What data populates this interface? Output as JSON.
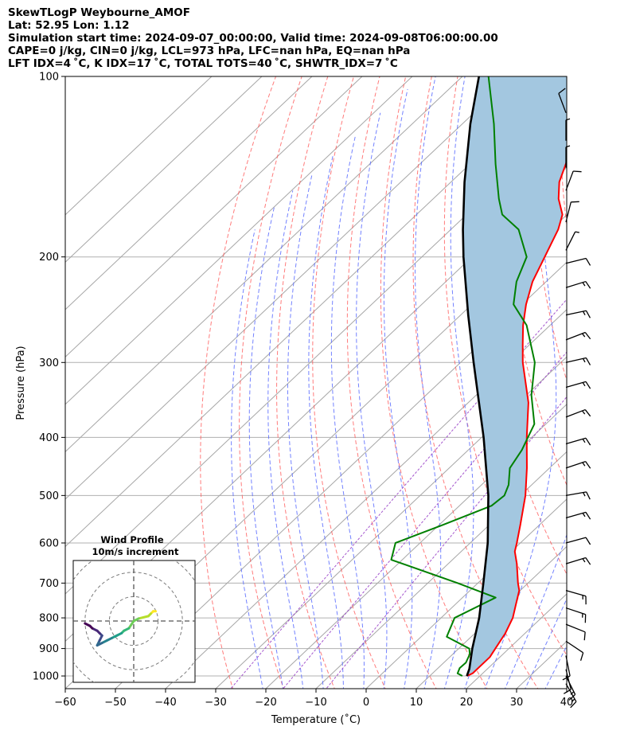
{
  "header": {
    "line1": "SkewTLogP Weybourne_AMOF",
    "line2": "Lat: 52.95   Lon: 1.12",
    "line3": "Simulation start time: 2024-09-07_00:00:00, Valid time: 2024-09-08T06:00:00.00",
    "line4": "CAPE=0 j/kg, CIN=0 j/kg, LCL=973 hPa, LFC=nan hPa, EQ=nan hPa",
    "line5": "LFT IDX=4 ˚C, K IDX=17 ˚C, TOTAL TOTS=40 ˚C, SHWTR_IDX=7 ˚C"
  },
  "chart_data": {
    "type": "skewt",
    "xlabel": "Temperature (˚C)",
    "ylabel": "Pressure (hPa)",
    "xlim": [
      -60,
      40
    ],
    "ylim": [
      1050,
      100
    ],
    "xticks": [
      -60,
      -50,
      -40,
      -30,
      -20,
      -10,
      0,
      10,
      20,
      30,
      40
    ],
    "xtick_labels": [
      "−60",
      "−50",
      "−40",
      "−30",
      "−20",
      "−10",
      "0",
      "10",
      "20",
      "30",
      "40"
    ],
    "yticks": [
      1000,
      900,
      800,
      700,
      600,
      500,
      400,
      300,
      200,
      100
    ],
    "ytick_labels": [
      "1000",
      "900",
      "800",
      "700",
      "600",
      "500",
      "400",
      "300",
      "200",
      "100"
    ],
    "series": [
      {
        "name": "temperature",
        "color": "#ff0000",
        "p": [
          1000,
          990,
          960,
          930,
          900,
          850,
          800,
          760,
          720,
          700,
          650,
          620,
          600,
          560,
          500,
          450,
          400,
          350,
          300,
          280,
          260,
          240,
          220,
          200,
          180,
          170,
          160,
          150,
          140,
          130,
          120,
          110,
          100
        ],
        "t": [
          17.4,
          18,
          18,
          18,
          17.3,
          16.1,
          14.3,
          12.1,
          9.8,
          8,
          3.7,
          0.7,
          -0.7,
          -3.8,
          -9,
          -14.5,
          -21,
          -28,
          -37.6,
          -41.4,
          -45.4,
          -49.2,
          -52.7,
          -55.5,
          -58.6,
          -60.9,
          -65,
          -68.4,
          -70.9,
          -73.6,
          -77.6,
          -81.9,
          -86.3
        ]
      },
      {
        "name": "dewpoint",
        "color": "#008000",
        "p": [
          1000,
          990,
          970,
          950,
          920,
          900,
          860,
          800,
          740,
          700,
          640,
          600,
          560,
          520,
          500,
          480,
          450,
          420,
          380,
          340,
          300,
          260,
          240,
          220,
          200,
          180,
          170,
          160,
          140,
          120,
          100
        ],
        "t": [
          16.5,
          15,
          14.3,
          14.4,
          13.4,
          12.1,
          5.1,
          2.7,
          6.6,
          -4,
          -22.2,
          -24.9,
          -19.3,
          -13.6,
          -13.2,
          -14.6,
          -17.9,
          -19.3,
          -22.3,
          -29,
          -35.2,
          -44.7,
          -51.7,
          -55.9,
          -59.1,
          -66.5,
          -72.9,
          -76.9,
          -84.9,
          -93.7,
          -104.8
        ]
      },
      {
        "name": "parcel",
        "color": "#000000",
        "p": [
          1000,
          973,
          900,
          800,
          700,
          600,
          500,
          400,
          300,
          250,
          200,
          180,
          150,
          120,
          100
        ],
        "t": [
          17.4,
          16.4,
          12.7,
          7.6,
          1.1,
          -6.5,
          -16.4,
          -29.6,
          -47.4,
          -58.5,
          -71.7,
          -77.6,
          -87.3,
          -98.4,
          -106.7
        ]
      }
    ],
    "wind_barbs": [
      {
        "p": 1030,
        "u": 8,
        "v": -14
      },
      {
        "p": 1000,
        "u": 6,
        "v": -12
      },
      {
        "p": 975,
        "u": 3,
        "v": -12
      },
      {
        "p": 925,
        "u": 2,
        "v": -10
      },
      {
        "p": 875,
        "u": 9,
        "v": -6
      },
      {
        "p": 820,
        "u": 10,
        "v": -4
      },
      {
        "p": 770,
        "u": 12,
        "v": -4
      },
      {
        "p": 720,
        "u": 14,
        "v": -4
      },
      {
        "p": 650,
        "u": 13,
        "v": 4
      },
      {
        "p": 600,
        "u": 11,
        "v": 3
      },
      {
        "p": 545,
        "u": 14,
        "v": 4
      },
      {
        "p": 500,
        "u": 17,
        "v": 3
      },
      {
        "p": 450,
        "u": 15,
        "v": 5
      },
      {
        "p": 410,
        "u": 14,
        "v": 4
      },
      {
        "p": 370,
        "u": 13,
        "v": 5
      },
      {
        "p": 330,
        "u": 14,
        "v": 4
      },
      {
        "p": 300,
        "u": 13,
        "v": 3
      },
      {
        "p": 275,
        "u": 13,
        "v": 5
      },
      {
        "p": 250,
        "u": 14,
        "v": 3
      },
      {
        "p": 225,
        "u": 13,
        "v": 4
      },
      {
        "p": 205,
        "u": 12,
        "v": 3
      },
      {
        "p": 195,
        "u": 3,
        "v": 6
      },
      {
        "p": 175,
        "u": 2,
        "v": 8
      },
      {
        "p": 155,
        "u": 3,
        "v": 8
      },
      {
        "p": 142,
        "u": 0,
        "v": 6
      },
      {
        "p": 128,
        "u": 0,
        "v": 7
      },
      {
        "p": 115,
        "u": -3,
        "v": 8
      }
    ],
    "hodograph": {
      "title": "Wind Profile",
      "subtitle": "10m/s increment",
      "rings": [
        10,
        20,
        30,
        40
      ],
      "range": 25,
      "u": [
        9,
        8,
        7,
        6,
        2,
        0,
        -2,
        -4,
        -5,
        -7,
        -9,
        -11,
        -13,
        -15,
        -14,
        -13,
        -14,
        -15,
        -17,
        -18,
        -20
      ],
      "v": [
        4,
        4,
        3,
        2,
        1,
        0,
        -3,
        -4,
        -5,
        -6,
        -7,
        -8,
        -9,
        -10,
        -8,
        -6,
        -5,
        -4,
        -3,
        -2,
        -1
      ],
      "colors": [
        "#fde725",
        "#b5de2b",
        "#6ece58",
        "#35b779",
        "#1f9e89",
        "#26828e",
        "#31688e",
        "#3e4989",
        "#482878",
        "#440154"
      ]
    }
  }
}
